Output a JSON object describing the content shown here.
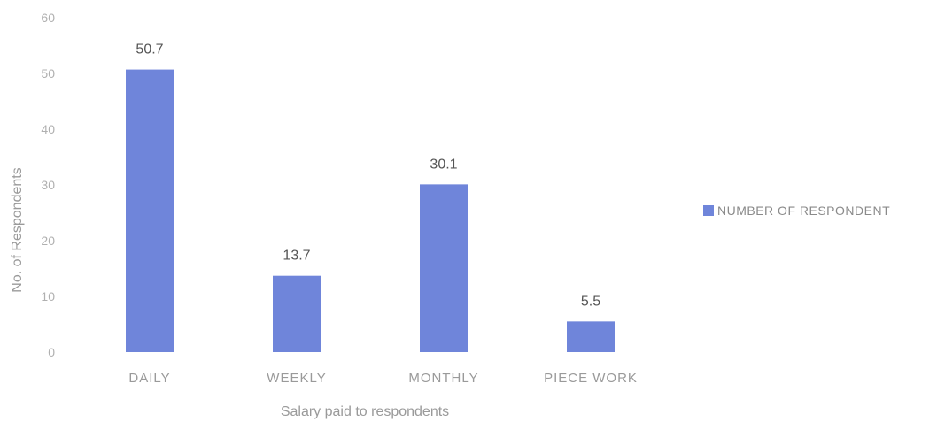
{
  "chart_data": {
    "type": "bar",
    "categories": [
      "DAILY",
      "WEEKLY",
      "MONTHLY",
      "PIECE WORK"
    ],
    "series": [
      {
        "name": "NUMBER OF RESPONDENT",
        "values": [
          50.7,
          13.7,
          30.1,
          5.5
        ]
      }
    ],
    "data_labels": [
      "50.7",
      "13.7",
      "30.1",
      "5.5"
    ],
    "title": "",
    "xlabel": "Salary paid to respondents",
    "ylabel": "No. of Respondents",
    "ylim": [
      0,
      60
    ],
    "yticks": [
      "0",
      "10",
      "20",
      "30",
      "40",
      "50",
      "60"
    ],
    "grid": false,
    "legend_position": "right",
    "bar_color": "#6f85da"
  }
}
